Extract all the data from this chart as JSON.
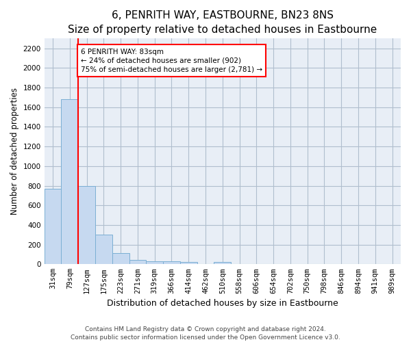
{
  "title": "6, PENRITH WAY, EASTBOURNE, BN23 8NS",
  "subtitle": "Size of property relative to detached houses in Eastbourne",
  "xlabel": "Distribution of detached houses by size in Eastbourne",
  "ylabel": "Number of detached properties",
  "categories": [
    "31sqm",
    "79sqm",
    "127sqm",
    "175sqm",
    "223sqm",
    "271sqm",
    "319sqm",
    "366sqm",
    "414sqm",
    "462sqm",
    "510sqm",
    "558sqm",
    "606sqm",
    "654sqm",
    "702sqm",
    "750sqm",
    "798sqm",
    "846sqm",
    "894sqm",
    "941sqm",
    "989sqm"
  ],
  "values": [
    770,
    1680,
    795,
    300,
    115,
    45,
    32,
    27,
    22,
    0,
    22,
    0,
    0,
    0,
    0,
    0,
    0,
    0,
    0,
    0,
    0
  ],
  "bar_color": "#c6d9f0",
  "bar_edge_color": "#7bafd4",
  "vline_x_index": 1.5,
  "annotation_text_line1": "6 PENRITH WAY: 83sqm",
  "annotation_text_line2": "← 24% of detached houses are smaller (902)",
  "annotation_text_line3": "75% of semi-detached houses are larger (2,781) →",
  "annotation_box_color": "white",
  "annotation_box_edge": "red",
  "vline_color": "red",
  "ylim": [
    0,
    2300
  ],
  "yticks": [
    0,
    200,
    400,
    600,
    800,
    1000,
    1200,
    1400,
    1600,
    1800,
    2000,
    2200
  ],
  "grid_color": "#b0bece",
  "bg_color": "#e8eef6",
  "footer": "Contains HM Land Registry data © Crown copyright and database right 2024.\nContains public sector information licensed under the Open Government Licence v3.0.",
  "title_fontsize": 11,
  "subtitle_fontsize": 9.5,
  "xlabel_fontsize": 9,
  "ylabel_fontsize": 8.5,
  "footer_fontsize": 6.5,
  "tick_fontsize": 7.5,
  "annotation_fontsize": 7.5
}
